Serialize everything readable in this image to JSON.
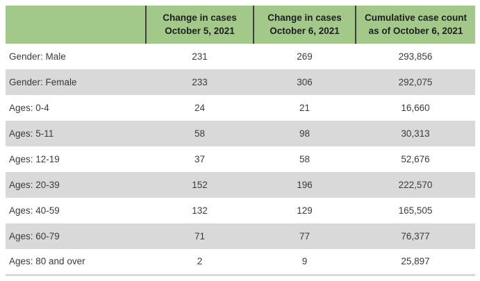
{
  "table": {
    "title_semantic": "covid-case-counts-by-gender-and-age",
    "header": {
      "col0": "",
      "col1": "Change in cases\nOctober 5, 2021",
      "col2": "Change in cases\nOctober 6, 2021",
      "col3": "Cumulative case count\nas of October 6, 2021"
    },
    "rows": [
      {
        "label": "Gender: Male",
        "oct5": "231",
        "oct6": "269",
        "cumulative": "293,856"
      },
      {
        "label": "Gender: Female",
        "oct5": "233",
        "oct6": "306",
        "cumulative": "292,075"
      },
      {
        "label": "Ages: 0-4",
        "oct5": "24",
        "oct6": "21",
        "cumulative": "16,660"
      },
      {
        "label": "Ages: 5-11",
        "oct5": "58",
        "oct6": "98",
        "cumulative": "30,313"
      },
      {
        "label": "Ages: 12-19",
        "oct5": "37",
        "oct6": "58",
        "cumulative": "52,676"
      },
      {
        "label": "Ages: 20-39",
        "oct5": "152",
        "oct6": "196",
        "cumulative": "222,570"
      },
      {
        "label": "Ages: 40-59",
        "oct5": "132",
        "oct6": "129",
        "cumulative": "165,505"
      },
      {
        "label": "Ages: 60-79",
        "oct5": "71",
        "oct6": "77",
        "cumulative": "76,377"
      },
      {
        "label": "Ages: 80 and over",
        "oct5": "2",
        "oct6": "9",
        "cumulative": "25,897"
      }
    ]
  },
  "chart_data": {
    "type": "table",
    "columns": [
      "",
      "Change in cases October 5, 2021",
      "Change in cases October 6, 2021",
      "Cumulative case count as of October 6, 2021"
    ],
    "categories": [
      "Gender: Male",
      "Gender: Female",
      "Ages: 0-4",
      "Ages: 5-11",
      "Ages: 12-19",
      "Ages: 20-39",
      "Ages: 40-59",
      "Ages: 60-79",
      "Ages: 80 and over"
    ],
    "series": [
      {
        "name": "Change in cases October 5, 2021",
        "values": [
          231,
          233,
          24,
          58,
          37,
          152,
          132,
          71,
          2
        ]
      },
      {
        "name": "Change in cases October 6, 2021",
        "values": [
          269,
          306,
          21,
          98,
          58,
          196,
          129,
          77,
          9
        ]
      },
      {
        "name": "Cumulative case count as of October 6, 2021",
        "values": [
          293856,
          292075,
          16660,
          30313,
          52676,
          222570,
          165505,
          76377,
          25897
        ]
      }
    ]
  },
  "colors": {
    "header_bg": "#a2c98a",
    "row_alt_bg": "#d9d9d9",
    "header_divider": "#3f3f3f",
    "bottom_border": "#d8d8d8",
    "header_text": "#1f1f1f",
    "body_text": "#3a3a3a"
  }
}
